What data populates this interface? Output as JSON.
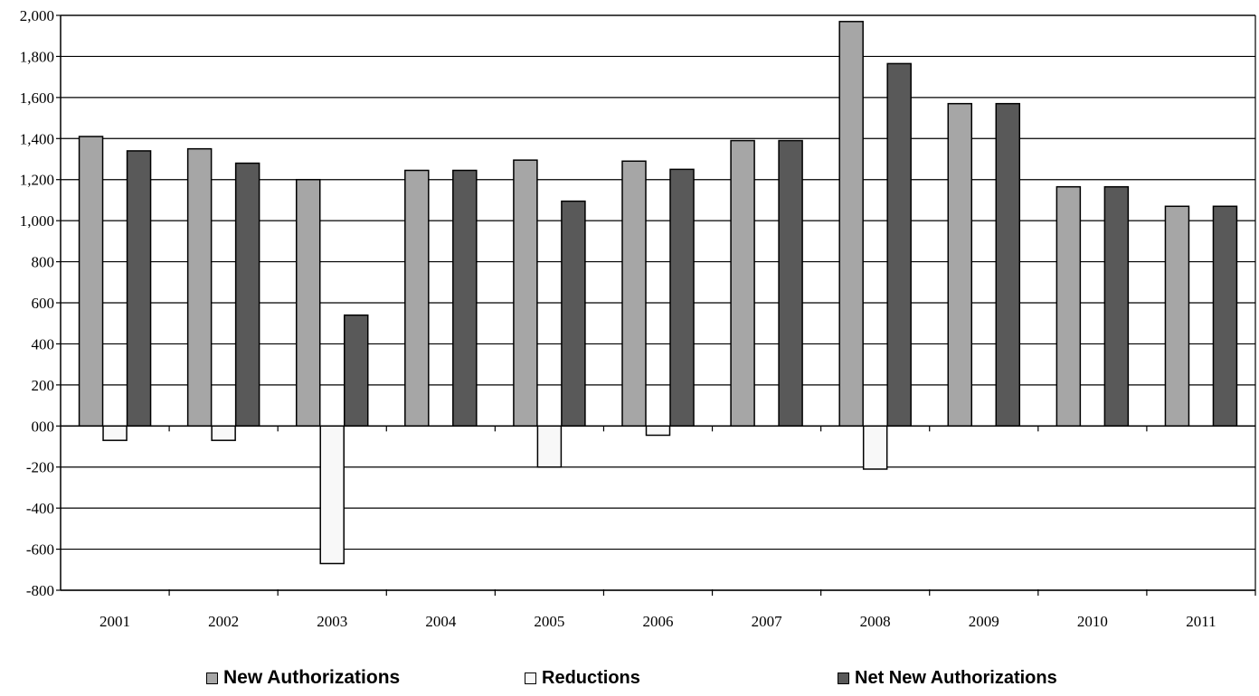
{
  "chart_data": {
    "type": "bar",
    "title": "",
    "xlabel": "",
    "ylabel": "",
    "categories": [
      "2001",
      "2002",
      "2003",
      "2004",
      "2005",
      "2006",
      "2007",
      "2008",
      "2009",
      "2010",
      "2011"
    ],
    "series": [
      {
        "name": "New Authorizations",
        "color": "#a6a6a6",
        "values": [
          1410,
          1350,
          1200,
          1245,
          1295,
          1290,
          1390,
          1970,
          1570,
          1165,
          1070
        ]
      },
      {
        "name": "Reductions",
        "color": "#f8f8f8",
        "values": [
          -70,
          -70,
          -670,
          0,
          -200,
          -45,
          0,
          -210,
          0,
          0,
          0
        ]
      },
      {
        "name": "Net New Authorizations",
        "color": "#595959",
        "values": [
          1340,
          1280,
          540,
          1245,
          1095,
          1250,
          1390,
          1765,
          1570,
          1165,
          1070
        ]
      }
    ],
    "ylim": [
      -800,
      2000
    ],
    "yticks": [
      -800,
      -600,
      -400,
      -200,
      0,
      200,
      400,
      600,
      800,
      1000,
      1200,
      1400,
      1600,
      1800,
      2000
    ],
    "ytick_labels": [
      "-800",
      "-600",
      "-400",
      "-200",
      "000",
      "200",
      "400",
      "600",
      "800",
      "1,000",
      "1,200",
      "1,400",
      "1,600",
      "1,800",
      "2,000"
    ],
    "grid": true,
    "legend_position": "bottom"
  }
}
